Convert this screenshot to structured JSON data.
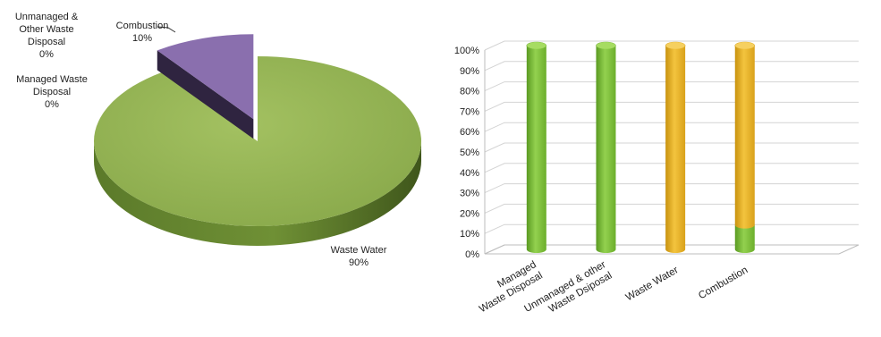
{
  "chart_data": [
    {
      "type": "pie",
      "three_d": true,
      "slices": [
        {
          "label": "Unmanaged & Other Waste Disposal",
          "value": 0,
          "pct_label": "0%",
          "color": "#8fb04f"
        },
        {
          "label": "Managed Waste Disposal",
          "value": 0,
          "pct_label": "0%",
          "color": "#8fb04f"
        },
        {
          "label": "Combustion",
          "value": 10,
          "pct_label": "10%",
          "color": "#8a6fae"
        },
        {
          "label": "Waste Water",
          "value": 90,
          "pct_label": "90%",
          "color": "#8fb04f"
        }
      ],
      "exploded_slice": "Combustion",
      "data_labels": {
        "unmanaged": [
          "Unmanaged &",
          "Other Waste",
          "Disposal",
          "0%"
        ],
        "managed": [
          "Managed Waste",
          "Disposal",
          "0%"
        ],
        "combustion": [
          "Combustion",
          "10%"
        ],
        "waste_water": [
          "Waste Water",
          "90%"
        ]
      }
    },
    {
      "type": "bar",
      "three_d": true,
      "stacked_percent": true,
      "categories": [
        [
          "Managed",
          "Waste Disposal"
        ],
        [
          "Unmanaged & other",
          "Waste Dsiposal"
        ],
        [
          "Waste Water"
        ],
        [
          "Combustion"
        ]
      ],
      "series": [
        {
          "color": "#7ec13a",
          "values": [
            100,
            100,
            0,
            12
          ]
        },
        {
          "color": "#e8b323",
          "values": [
            0,
            0,
            100,
            88
          ]
        }
      ],
      "ylim": [
        0,
        100
      ],
      "y_ticks": [
        "0%",
        "10%",
        "20%",
        "30%",
        "40%",
        "50%",
        "60%",
        "70%",
        "80%",
        "90%",
        "100%"
      ],
      "grid": true
    }
  ]
}
